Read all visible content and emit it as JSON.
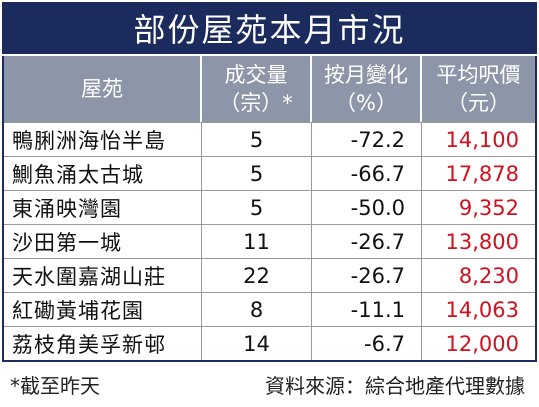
{
  "header": {
    "title": "部份屋苑本月市況"
  },
  "table": {
    "columns": [
      [
        "屋苑"
      ],
      [
        "成交量",
        "（宗）*"
      ],
      [
        "按月變化",
        "（%）"
      ],
      [
        "平均呎價",
        "（元）"
      ]
    ],
    "rows": [
      [
        "鴨脷洲海怡半島",
        "5",
        "-72.2",
        "14,100"
      ],
      [
        "鰂魚涌太古城",
        "5",
        "-66.7",
        "17,878"
      ],
      [
        "東涌映灣園",
        "5",
        "-50.0",
        "9,352"
      ],
      [
        "沙田第一城",
        "11",
        "-26.7",
        "13,800"
      ],
      [
        "天水圍嘉湖山莊",
        "22",
        "-26.7",
        "8,230"
      ],
      [
        "紅磡黃埔花園",
        "8",
        "-11.1",
        "14,063"
      ],
      [
        "荔枝角美孚新邨",
        "14",
        "-6.7",
        "12,000"
      ]
    ]
  },
  "footer": {
    "note": "*截至昨天",
    "source": "資料來源：綜合地產代理數據"
  }
}
